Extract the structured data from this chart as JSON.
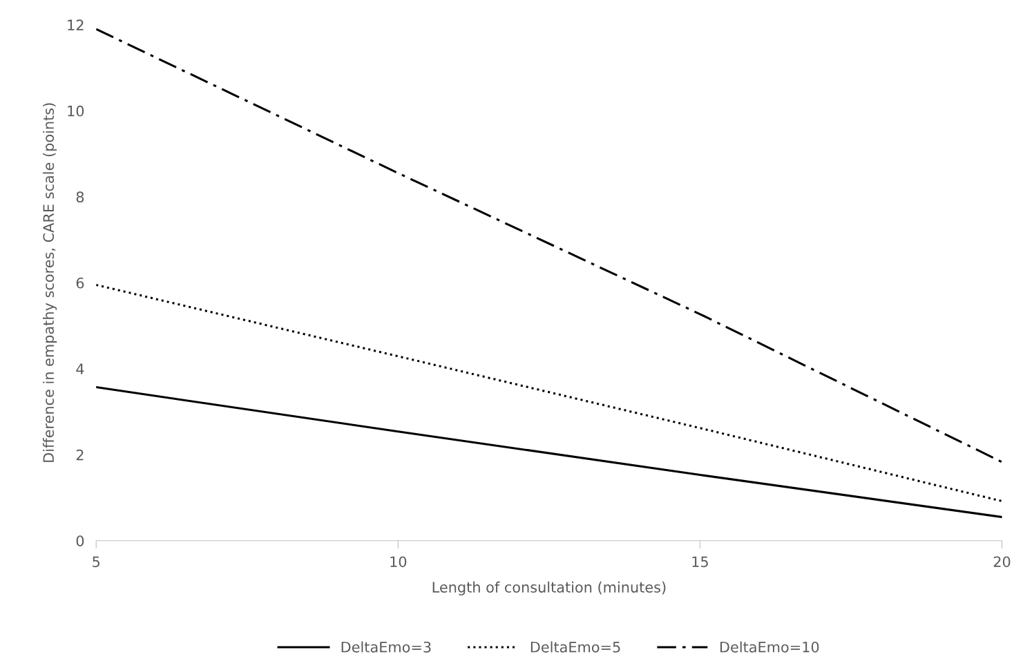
{
  "chart_data": {
    "type": "line",
    "xlabel": "Length of consultation (minutes)",
    "ylabel": "Difference in empathy scores, CARE scale (points)",
    "x": [
      5,
      10,
      15,
      20
    ],
    "series": [
      {
        "name": "DeltaEmo=3",
        "color": "#000000",
        "line_style": "solid",
        "values": [
          3.57,
          2.54,
          1.53,
          0.55
        ]
      },
      {
        "name": "DeltaEmo=5",
        "color": "#000000",
        "line_style": "dotted",
        "values": [
          5.95,
          4.29,
          2.62,
          0.92
        ]
      },
      {
        "name": "DeltaEmo=10",
        "color": "#000000",
        "line_style": "dashdot",
        "values": [
          11.9,
          8.55,
          5.27,
          1.83
        ]
      }
    ],
    "xlim": [
      5,
      20
    ],
    "xticks": [
      5,
      10,
      15,
      20
    ],
    "ylim": [
      0,
      12
    ],
    "yticks": [
      0,
      2,
      4,
      6,
      8,
      10,
      12
    ],
    "grid": false,
    "legend": "bottom",
    "marker": "none"
  }
}
